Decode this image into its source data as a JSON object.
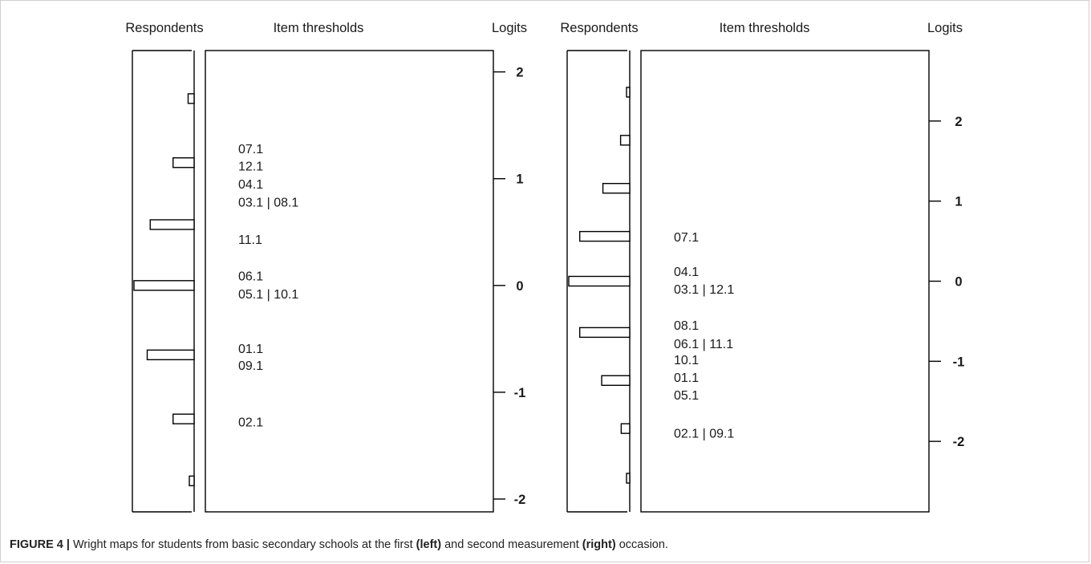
{
  "chart_data": [
    {
      "type": "wright_map",
      "panel": "left",
      "headers": {
        "respondents": "Respondents",
        "items": "Item thresholds",
        "logits": "Logits"
      },
      "ylim": [
        -2.12,
        2.2
      ],
      "ticks": [
        2,
        1,
        0,
        -1,
        -2
      ],
      "tick_labels": [
        "2",
        "1",
        "0",
        "-1",
        "-2"
      ],
      "respondent_bins": [
        {
          "logit": 1.75,
          "freq": 0.1
        },
        {
          "logit": 1.15,
          "freq": 0.35
        },
        {
          "logit": 0.57,
          "freq": 0.73
        },
        {
          "logit": 0.0,
          "freq": 1.0
        },
        {
          "logit": -0.65,
          "freq": 0.78
        },
        {
          "logit": -1.25,
          "freq": 0.35
        },
        {
          "logit": -1.83,
          "freq": 0.08
        }
      ],
      "item_labels": [
        {
          "label": "07.1",
          "logit": 1.28
        },
        {
          "label": "12.1",
          "logit": 1.12
        },
        {
          "label": "04.1",
          "logit": 0.95
        },
        {
          "label": "03.1 | 08.1",
          "logit": 0.78
        },
        {
          "label": "11.1",
          "logit": 0.43
        },
        {
          "label": "06.1",
          "logit": 0.09
        },
        {
          "label": "05.1 | 10.1",
          "logit": -0.08
        },
        {
          "label": "01.1",
          "logit": -0.59
        },
        {
          "label": "09.1",
          "logit": -0.75
        },
        {
          "label": "02.1",
          "logit": -1.28
        }
      ]
    },
    {
      "type": "wright_map",
      "panel": "right",
      "headers": {
        "respondents": "Respondents",
        "items": "Item thresholds",
        "logits": "Logits"
      },
      "ylim": [
        -2.88,
        2.88
      ],
      "ticks": [
        2,
        1,
        0,
        -1,
        -2
      ],
      "tick_labels": [
        "2",
        "1",
        "0",
        "-1",
        "-2"
      ],
      "respondent_bins": [
        {
          "logit": 2.36,
          "freq": 0.04
        },
        {
          "logit": 1.76,
          "freq": 0.15
        },
        {
          "logit": 1.16,
          "freq": 0.44
        },
        {
          "logit": 0.56,
          "freq": 0.82
        },
        {
          "logit": 0.0,
          "freq": 1.0
        },
        {
          "logit": -0.64,
          "freq": 0.82
        },
        {
          "logit": -1.24,
          "freq": 0.46
        },
        {
          "logit": -1.84,
          "freq": 0.14
        },
        {
          "logit": -2.46,
          "freq": 0.04
        }
      ],
      "item_labels": [
        {
          "label": "07.1",
          "logit": 0.55
        },
        {
          "label": "04.1",
          "logit": 0.12
        },
        {
          "label": "03.1 | 12.1",
          "logit": -0.1
        },
        {
          "label": "08.1",
          "logit": -0.55
        },
        {
          "label": "06.1 | 11.1",
          "logit": -0.78
        },
        {
          "label": "10.1",
          "logit": -0.98
        },
        {
          "label": "01.1",
          "logit": -1.2
        },
        {
          "label": "05.1",
          "logit": -1.42
        },
        {
          "label": "02.1 | 09.1",
          "logit": -1.9
        }
      ]
    }
  ],
  "caption": {
    "figure_label": "FIGURE 4 |",
    "text_1": " Wright maps for students from basic secondary schools at the first ",
    "bold_left": "(left)",
    "text_2": " and second measurement ",
    "bold_right": "(right)",
    "text_3": " occasion."
  }
}
